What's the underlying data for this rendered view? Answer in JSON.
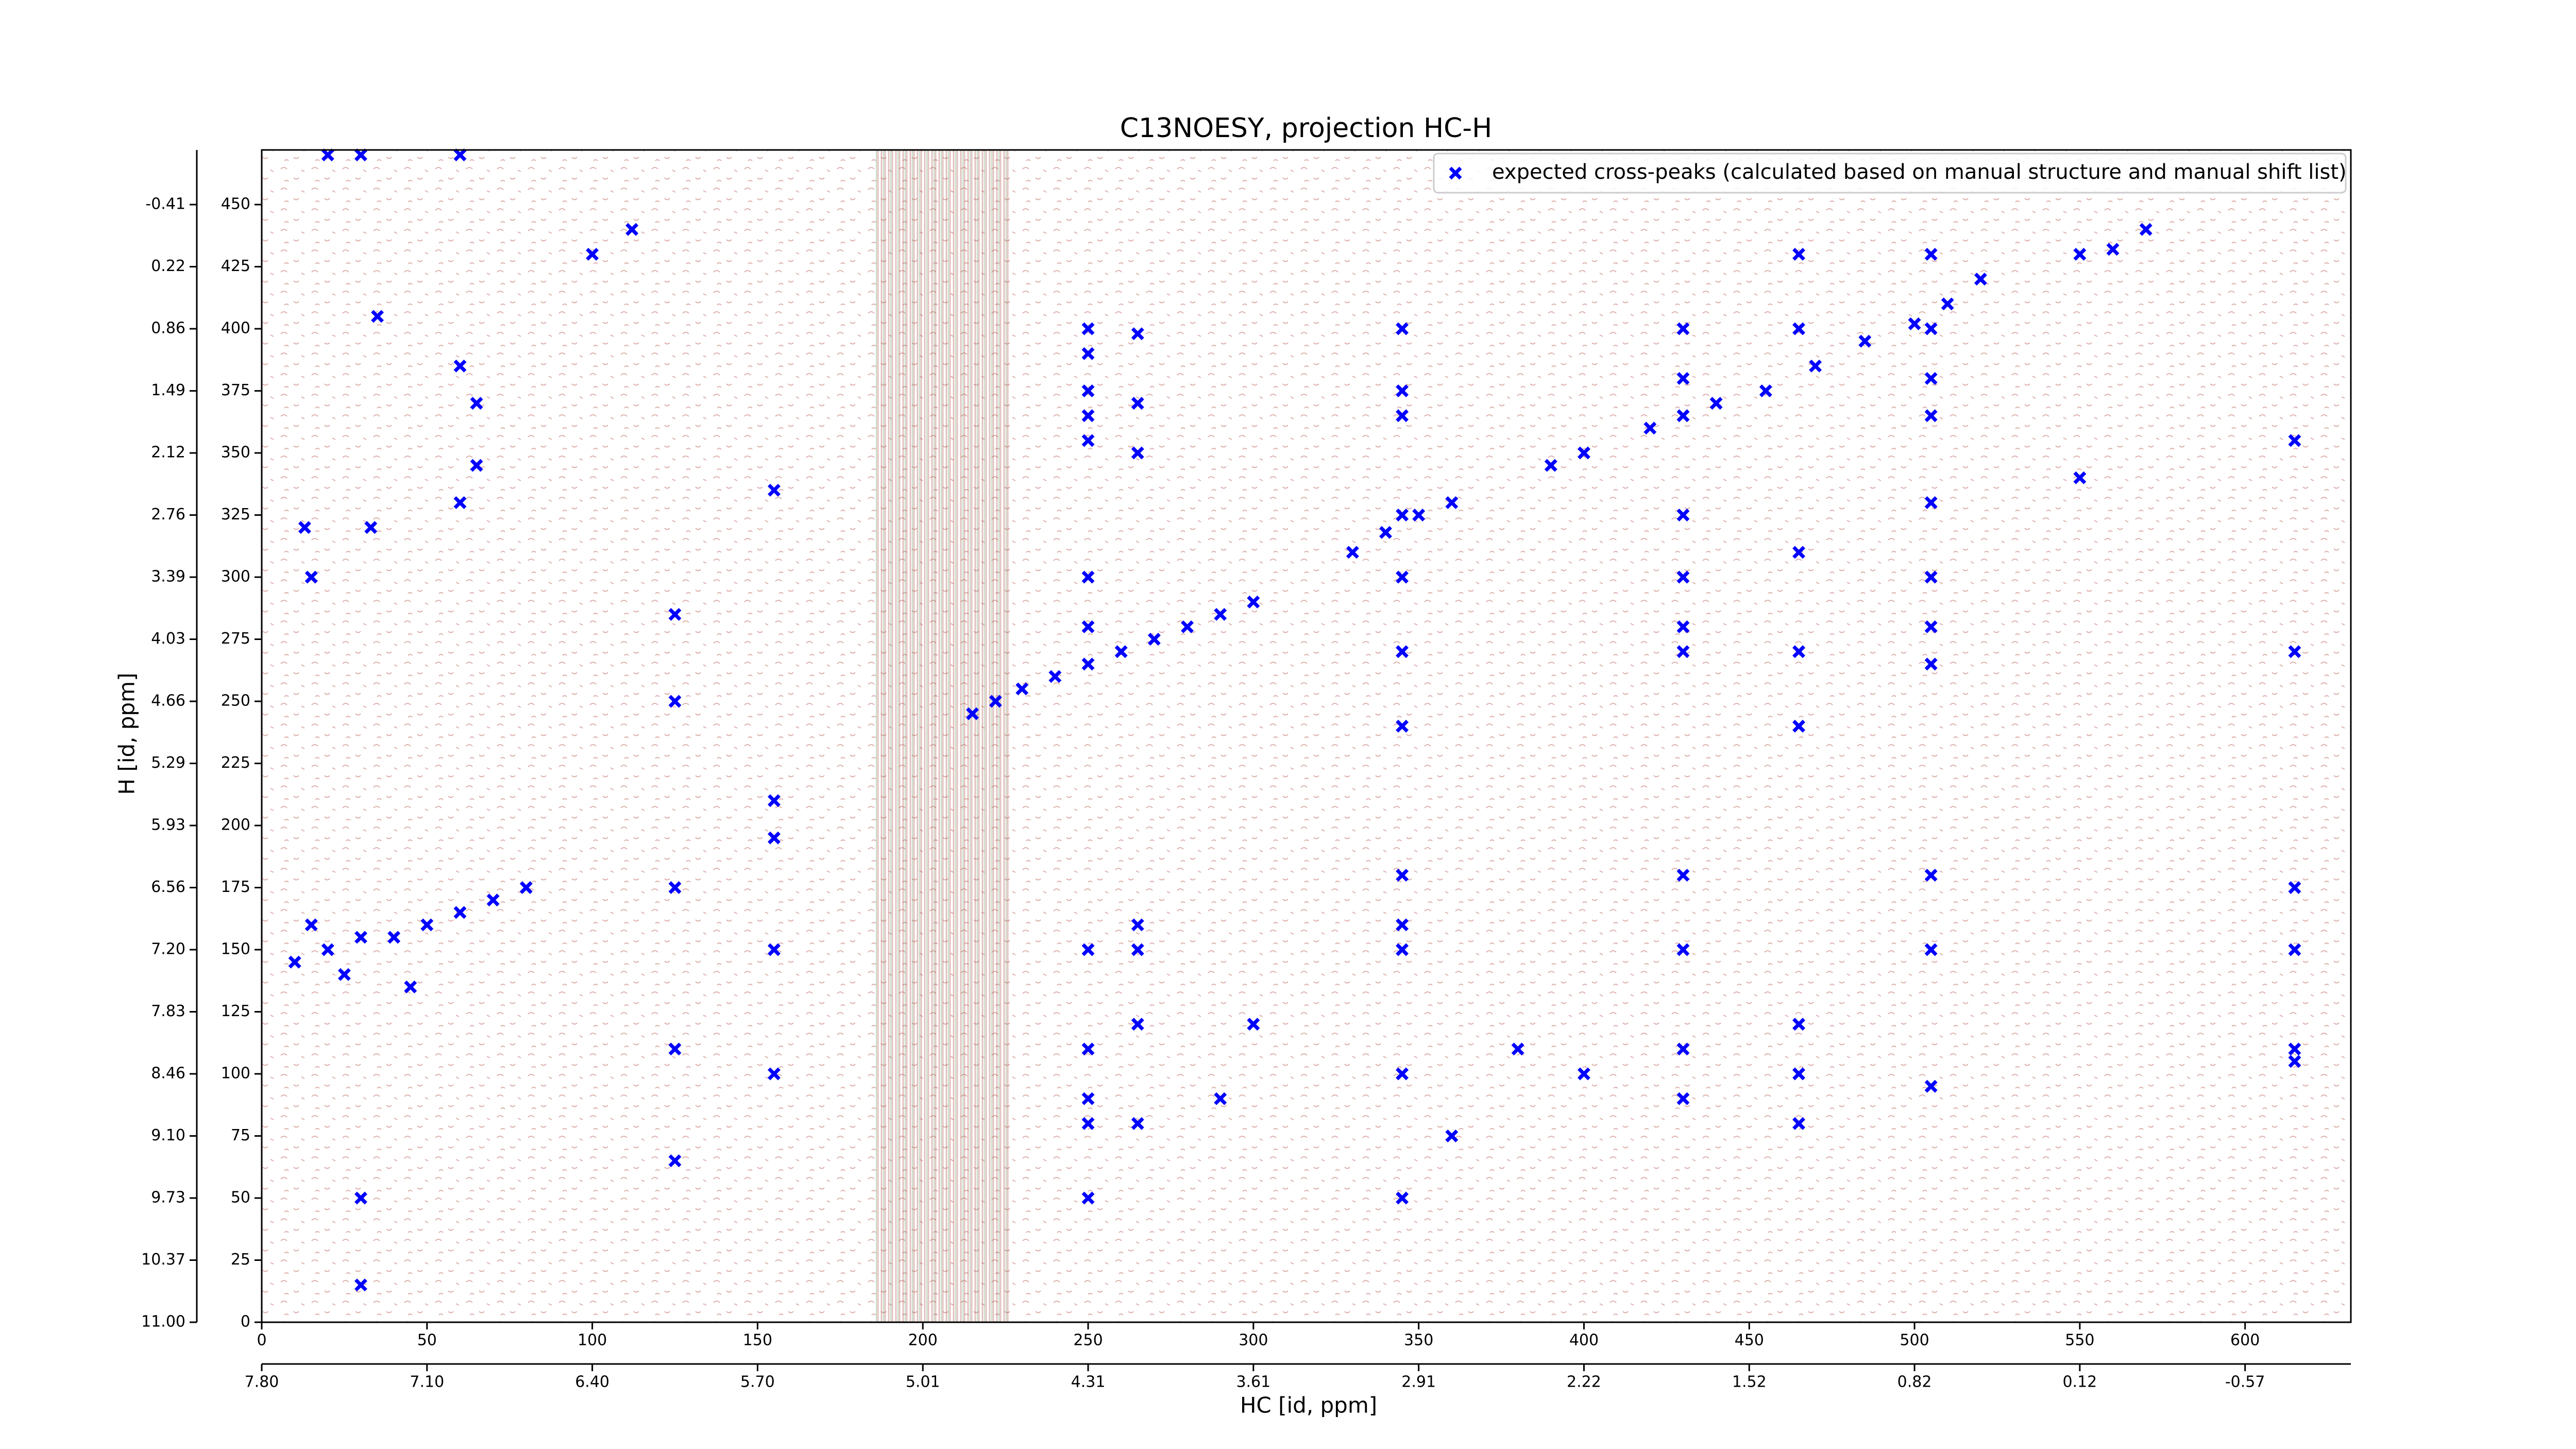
{
  "chart_data": {
    "type": "scatter",
    "title": "C13NOESY, projection HC-H",
    "x_label": "HC [id, ppm]",
    "y_label": "H [id, ppm]",
    "xlim": [
      0,
      632
    ],
    "ylim": [
      0,
      472
    ],
    "xticks": [
      0,
      50,
      100,
      150,
      200,
      250,
      300,
      350,
      400,
      450,
      500,
      550,
      600
    ],
    "yticks": [
      0,
      25,
      50,
      75,
      100,
      125,
      150,
      175,
      200,
      225,
      250,
      275,
      300,
      325,
      350,
      375,
      400,
      425,
      450
    ],
    "x2ticks": [
      {
        "value": 0,
        "label": "7.80"
      },
      {
        "value": 50,
        "label": "7.10"
      },
      {
        "value": 100,
        "label": "6.40"
      },
      {
        "value": 150,
        "label": "5.70"
      },
      {
        "value": 200,
        "label": "5.01"
      },
      {
        "value": 250,
        "label": "4.31"
      },
      {
        "value": 300,
        "label": "3.61"
      },
      {
        "value": 350,
        "label": "2.91"
      },
      {
        "value": 400,
        "label": "2.22"
      },
      {
        "value": 450,
        "label": "1.52"
      },
      {
        "value": 500,
        "label": "0.82"
      },
      {
        "value": 550,
        "label": "0.12"
      },
      {
        "value": 600,
        "label": "-0.57"
      }
    ],
    "y2ticks": [
      {
        "value": 0,
        "label": "11.00"
      },
      {
        "value": 25,
        "label": "10.37"
      },
      {
        "value": 50,
        "label": "9.73"
      },
      {
        "value": 75,
        "label": "9.10"
      },
      {
        "value": 100,
        "label": "8.46"
      },
      {
        "value": 125,
        "label": "7.83"
      },
      {
        "value": 150,
        "label": "7.20"
      },
      {
        "value": 175,
        "label": "6.56"
      },
      {
        "value": 200,
        "label": "5.93"
      },
      {
        "value": 225,
        "label": "5.29"
      },
      {
        "value": 250,
        "label": "4.66"
      },
      {
        "value": 275,
        "label": "4.03"
      },
      {
        "value": 300,
        "label": "3.39"
      },
      {
        "value": 325,
        "label": "2.76"
      },
      {
        "value": 350,
        "label": "2.12"
      },
      {
        "value": 375,
        "label": "1.49"
      },
      {
        "value": 400,
        "label": "0.86"
      },
      {
        "value": 425,
        "label": "0.22"
      },
      {
        "value": 450,
        "label": "-0.41"
      }
    ],
    "legend": "upper right",
    "series": [
      {
        "name": "expected cross-peaks (calculated based on manual structure and manual shift list)",
        "color": "#0000ff",
        "x": [
          20,
          30,
          60,
          112,
          35,
          60,
          65,
          65,
          60,
          33,
          13,
          15,
          10,
          20,
          30,
          40,
          50,
          60,
          70,
          80,
          15,
          25,
          45,
          215,
          222,
          230,
          240,
          250,
          260,
          270,
          280,
          290,
          300,
          330,
          340,
          350,
          360,
          390,
          400,
          420,
          430,
          440,
          455,
          470,
          485,
          500,
          510,
          520,
          560,
          570,
          250,
          250,
          250,
          250,
          250,
          250,
          250,
          250,
          250,
          250,
          250,
          250,
          265,
          265,
          265,
          265,
          265,
          265,
          265,
          345,
          345,
          345,
          345,
          345,
          345,
          345,
          345,
          345,
          345,
          345,
          345,
          430,
          430,
          430,
          430,
          430,
          430,
          430,
          430,
          430,
          430,
          430,
          505,
          505,
          505,
          505,
          505,
          505,
          505,
          505,
          505,
          505,
          505,
          465,
          465,
          465,
          465,
          465,
          465,
          465,
          465,
          615,
          615,
          615,
          615,
          615,
          615,
          550,
          550,
          125,
          125,
          125,
          125,
          125,
          155,
          155,
          155,
          155,
          155,
          100,
          30,
          30,
          360,
          380,
          400,
          300,
          290
        ],
        "y": [
          470,
          470,
          470,
          440,
          405,
          385,
          370,
          345,
          330,
          320,
          320,
          300,
          145,
          150,
          155,
          155,
          160,
          165,
          170,
          175,
          160,
          140,
          135,
          245,
          250,
          255,
          260,
          265,
          270,
          275,
          280,
          285,
          290,
          310,
          318,
          325,
          330,
          345,
          350,
          360,
          365,
          370,
          375,
          385,
          395,
          402,
          410,
          420,
          432,
          440,
          400,
          390,
          375,
          365,
          355,
          300,
          280,
          150,
          110,
          90,
          80,
          50,
          398,
          370,
          350,
          160,
          150,
          120,
          80,
          400,
          375,
          365,
          325,
          300,
          270,
          240,
          180,
          160,
          150,
          100,
          50,
          400,
          380,
          365,
          325,
          300,
          280,
          270,
          180,
          150,
          110,
          90,
          430,
          400,
          380,
          365,
          330,
          300,
          280,
          265,
          180,
          150,
          95,
          430,
          400,
          310,
          270,
          240,
          120,
          100,
          80,
          355,
          270,
          175,
          150,
          110,
          105,
          430,
          340,
          285,
          250,
          175,
          110,
          65,
          335,
          210,
          195,
          150,
          100,
          430,
          50,
          15,
          75,
          110,
          100,
          120,
          90
        ]
      }
    ]
  }
}
